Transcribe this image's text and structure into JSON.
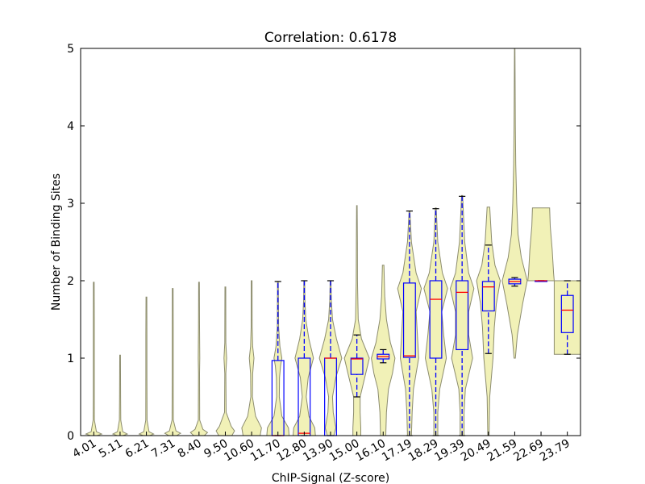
{
  "chart_data": {
    "type": "violin+box",
    "title": "Correlation: 0.6178",
    "xlabel": "ChIP-Signal (Z-score)",
    "ylabel": "Number of Binding Sites",
    "ylim": [
      0,
      5
    ],
    "yticks": [
      "0",
      "1",
      "2",
      "3",
      "4",
      "5"
    ],
    "grid": false,
    "colors": {
      "violin_fill": "#eeeeaa",
      "violin_edge": "#8c8c6e",
      "box": "#0000ff",
      "median": "#ff0000",
      "cap": "#000000"
    },
    "categories": [
      "4.01",
      "5.11",
      "6.21",
      "7.31",
      "8.40",
      "9.50",
      "10.60",
      "11.70",
      "12.80",
      "13.90",
      "15.00",
      "16.10",
      "17.19",
      "18.29",
      "19.39",
      "20.49",
      "21.59",
      "22.69",
      "23.79"
    ],
    "violins": [
      [
        [
          0,
          0.25
        ],
        [
          0.02,
          0.6
        ],
        [
          0.05,
          0.2
        ],
        [
          0.2,
          0.05
        ],
        [
          0.5,
          0.04
        ],
        [
          1,
          0.04
        ],
        [
          1.5,
          0.04
        ],
        [
          1.98,
          0.03
        ]
      ],
      [
        [
          0,
          0.22
        ],
        [
          0.02,
          0.55
        ],
        [
          0.05,
          0.2
        ],
        [
          0.2,
          0.05
        ],
        [
          0.5,
          0.04
        ],
        [
          1.04,
          0.03
        ]
      ],
      [
        [
          0,
          0.25
        ],
        [
          0.02,
          0.55
        ],
        [
          0.05,
          0.2
        ],
        [
          0.2,
          0.05
        ],
        [
          0.8,
          0.04
        ],
        [
          1.3,
          0.04
        ],
        [
          1.79,
          0.03
        ]
      ],
      [
        [
          0,
          0.3
        ],
        [
          0.03,
          0.6
        ],
        [
          0.06,
          0.25
        ],
        [
          0.2,
          0.05
        ],
        [
          0.8,
          0.04
        ],
        [
          1.4,
          0.04
        ],
        [
          1.9,
          0.03
        ]
      ],
      [
        [
          0,
          0.4
        ],
        [
          0.04,
          0.65
        ],
        [
          0.08,
          0.3
        ],
        [
          0.2,
          0.05
        ],
        [
          0.8,
          0.04
        ],
        [
          1,
          0.06
        ],
        [
          1.4,
          0.04
        ],
        [
          1.98,
          0.03
        ]
      ],
      [
        [
          0,
          0.5
        ],
        [
          0.06,
          0.7
        ],
        [
          0.12,
          0.45
        ],
        [
          0.3,
          0.06
        ],
        [
          0.8,
          0.04
        ],
        [
          1,
          0.1
        ],
        [
          1.2,
          0.04
        ],
        [
          1.92,
          0.03
        ]
      ],
      [
        [
          0,
          0.65
        ],
        [
          0.1,
          0.75
        ],
        [
          0.25,
          0.3
        ],
        [
          0.5,
          0.06
        ],
        [
          0.8,
          0.08
        ],
        [
          1,
          0.18
        ],
        [
          1.15,
          0.08
        ],
        [
          1.4,
          0.04
        ],
        [
          2,
          0.03
        ]
      ],
      [
        [
          0,
          0.85
        ],
        [
          0.1,
          0.8
        ],
        [
          0.25,
          0.3
        ],
        [
          0.5,
          0.1
        ],
        [
          0.75,
          0.12
        ],
        [
          0.9,
          0.2
        ],
        [
          1,
          0.3
        ],
        [
          1.15,
          0.15
        ],
        [
          1.4,
          0.05
        ],
        [
          1.98,
          0.03
        ]
      ],
      [
        [
          0,
          0.85
        ],
        [
          0.1,
          0.8
        ],
        [
          0.25,
          0.35
        ],
        [
          0.5,
          0.15
        ],
        [
          0.75,
          0.3
        ],
        [
          1,
          0.7
        ],
        [
          1.25,
          0.35
        ],
        [
          1.5,
          0.12
        ],
        [
          1.75,
          0.05
        ],
        [
          2,
          0.03
        ]
      ],
      [
        [
          0,
          0.25
        ],
        [
          0.1,
          0.4
        ],
        [
          0.3,
          0.2
        ],
        [
          0.5,
          0.15
        ],
        [
          0.75,
          0.4
        ],
        [
          1,
          0.85
        ],
        [
          1.25,
          0.45
        ],
        [
          1.5,
          0.15
        ],
        [
          1.75,
          0.06
        ],
        [
          2,
          0.03
        ]
      ],
      [
        [
          0,
          0.3
        ],
        [
          0.1,
          0.3
        ],
        [
          0.3,
          0.25
        ],
        [
          0.5,
          0.25
        ],
        [
          0.75,
          0.6
        ],
        [
          1,
          0.95
        ],
        [
          1.25,
          0.35
        ],
        [
          1.5,
          0.1
        ],
        [
          2,
          0.05
        ],
        [
          2.5,
          0.04
        ],
        [
          2.97,
          0.02
        ]
      ],
      [
        [
          0,
          0.2
        ],
        [
          0.3,
          0.25
        ],
        [
          0.6,
          0.4
        ],
        [
          0.8,
          0.7
        ],
        [
          1,
          0.9
        ],
        [
          1.2,
          0.55
        ],
        [
          1.5,
          0.25
        ],
        [
          1.8,
          0.12
        ],
        [
          2.2,
          0.06
        ]
      ],
      [
        [
          0,
          0.15
        ],
        [
          0.3,
          0.2
        ],
        [
          0.6,
          0.3
        ],
        [
          1,
          0.7
        ],
        [
          1.3,
          0.6
        ],
        [
          1.6,
          0.5
        ],
        [
          1.9,
          0.9
        ],
        [
          2.1,
          0.5
        ],
        [
          2.5,
          0.15
        ],
        [
          2.9,
          0.03
        ]
      ],
      [
        [
          0,
          0.15
        ],
        [
          0.3,
          0.15
        ],
        [
          0.6,
          0.3
        ],
        [
          1,
          0.8
        ],
        [
          1.3,
          0.6
        ],
        [
          1.6,
          0.45
        ],
        [
          1.9,
          0.9
        ],
        [
          2.1,
          0.5
        ],
        [
          2.5,
          0.15
        ],
        [
          2.94,
          0.03
        ]
      ],
      [
        [
          0,
          0.15
        ],
        [
          0.3,
          0.15
        ],
        [
          0.6,
          0.25
        ],
        [
          1,
          0.8
        ],
        [
          1.3,
          0.5
        ],
        [
          1.6,
          0.5
        ],
        [
          1.9,
          0.9
        ],
        [
          2.1,
          0.5
        ],
        [
          2.5,
          0.2
        ],
        [
          3.1,
          0.04
        ]
      ],
      [
        [
          0,
          0.05
        ],
        [
          0.5,
          0.1
        ],
        [
          1,
          0.35
        ],
        [
          1.4,
          0.45
        ],
        [
          1.7,
          0.6
        ],
        [
          2,
          0.9
        ],
        [
          2.2,
          0.5
        ],
        [
          2.5,
          0.25
        ],
        [
          2.95,
          0.1
        ]
      ],
      [
        [
          1,
          0.05
        ],
        [
          1.3,
          0.2
        ],
        [
          1.7,
          0.6
        ],
        [
          2,
          0.95
        ],
        [
          2.3,
          0.5
        ],
        [
          2.6,
          0.25
        ],
        [
          3,
          0.15
        ],
        [
          3.5,
          0.08
        ],
        [
          4,
          0.05
        ],
        [
          5,
          0.02
        ]
      ],
      [
        [
          2,
          1
        ],
        [
          2.1,
          0.95
        ],
        [
          2.4,
          0.85
        ],
        [
          2.7,
          0.7
        ],
        [
          2.94,
          0.65
        ]
      ],
      [
        [
          1.05,
          1
        ],
        [
          1.3,
          1
        ],
        [
          1.6,
          1
        ],
        [
          1.8,
          1
        ],
        [
          2,
          1
        ]
      ]
    ],
    "boxes": [
      null,
      null,
      null,
      null,
      null,
      null,
      null,
      {
        "wlo": 0,
        "q1": 0,
        "med": 0,
        "q3": 0.97,
        "whi": 1.99
      },
      {
        "wlo": 0,
        "q1": 0,
        "med": 0.03,
        "q3": 1.0,
        "whi": 2.0
      },
      {
        "wlo": 0,
        "q1": 0,
        "med": 1.0,
        "q3": 1.0,
        "whi": 2.0
      },
      {
        "wlo": 0.5,
        "q1": 0.79,
        "med": 0.99,
        "q3": 1.0,
        "whi": 1.3
      },
      {
        "wlo": 0.94,
        "q1": 0.99,
        "med": 1.02,
        "q3": 1.05,
        "whi": 1.11
      },
      {
        "wlo": 0,
        "q1": 1.01,
        "med": 1.03,
        "q3": 1.97,
        "whi": 2.9
      },
      {
        "wlo": 0,
        "q1": 1.0,
        "med": 1.76,
        "q3": 2.0,
        "whi": 2.93
      },
      {
        "wlo": 0,
        "q1": 1.11,
        "med": 1.85,
        "q3": 2.0,
        "whi": 3.09
      },
      {
        "wlo": 1.06,
        "q1": 1.61,
        "med": 1.92,
        "q3": 1.99,
        "whi": 2.46
      },
      {
        "wlo": 1.93,
        "q1": 1.96,
        "med": 1.99,
        "q3": 2.02,
        "whi": 2.04
      },
      {
        "wlo": 2.0,
        "q1": 2.0,
        "med": 2.0,
        "q3": 2.0,
        "whi": 2.0
      },
      {
        "wlo": 1.05,
        "q1": 1.33,
        "med": 1.62,
        "q3": 1.81,
        "whi": 2.0
      }
    ]
  }
}
